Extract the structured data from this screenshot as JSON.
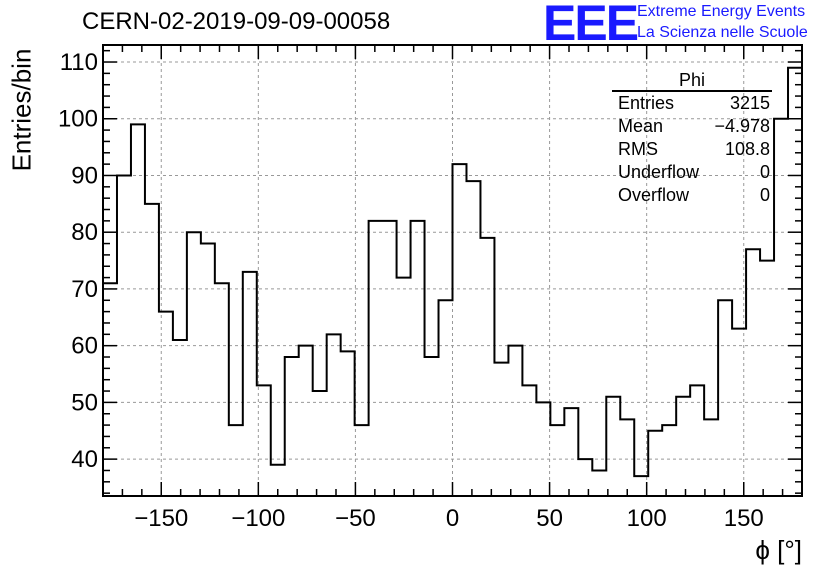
{
  "header": {
    "title": "CERN-02-2019-09-09-00058",
    "logo_text": "EEE",
    "logo_line1": "Extreme Energy Events",
    "logo_line2": "La Scienza nelle Scuole"
  },
  "stats_box": {
    "name": "Phi",
    "rows": [
      {
        "label": "Entries",
        "value": "3215"
      },
      {
        "label": "Mean",
        "value": "−4.978"
      },
      {
        "label": "RMS",
        "value": "108.8"
      },
      {
        "label": "Underflow",
        "value": "0"
      },
      {
        "label": "Overflow",
        "value": "0"
      }
    ]
  },
  "chart_data": {
    "type": "histogram",
    "title": "CERN-02-2019-09-09-00058",
    "xlabel": "ϕ [°]",
    "ylabel": "Entries/bin",
    "xlim": [
      -180,
      180
    ],
    "ylim": [
      33.5,
      113
    ],
    "grid": true,
    "bin_edges_start": -180,
    "bin_width": 7.2,
    "values": [
      71,
      90,
      99,
      85,
      66,
      61,
      80,
      78,
      71,
      46,
      73,
      53,
      39,
      58,
      60,
      52,
      62,
      59,
      46,
      82,
      82,
      72,
      82,
      58,
      68,
      92,
      89,
      79,
      57,
      60,
      53,
      50,
      46,
      49,
      40,
      38,
      51,
      47,
      37,
      45,
      46,
      51,
      53,
      47,
      68,
      63,
      77,
      75,
      100,
      109
    ],
    "x_ticks": [
      -150,
      -100,
      -50,
      0,
      50,
      100,
      150
    ],
    "y_ticks": [
      40,
      50,
      60,
      70,
      80,
      90,
      100,
      110
    ],
    "x_tick_labels": [
      "−150",
      "−100",
      "−50",
      "0",
      "50",
      "100",
      "150"
    ],
    "y_tick_labels": [
      "40",
      "50",
      "60",
      "70",
      "80",
      "90",
      "100",
      "110"
    ]
  }
}
